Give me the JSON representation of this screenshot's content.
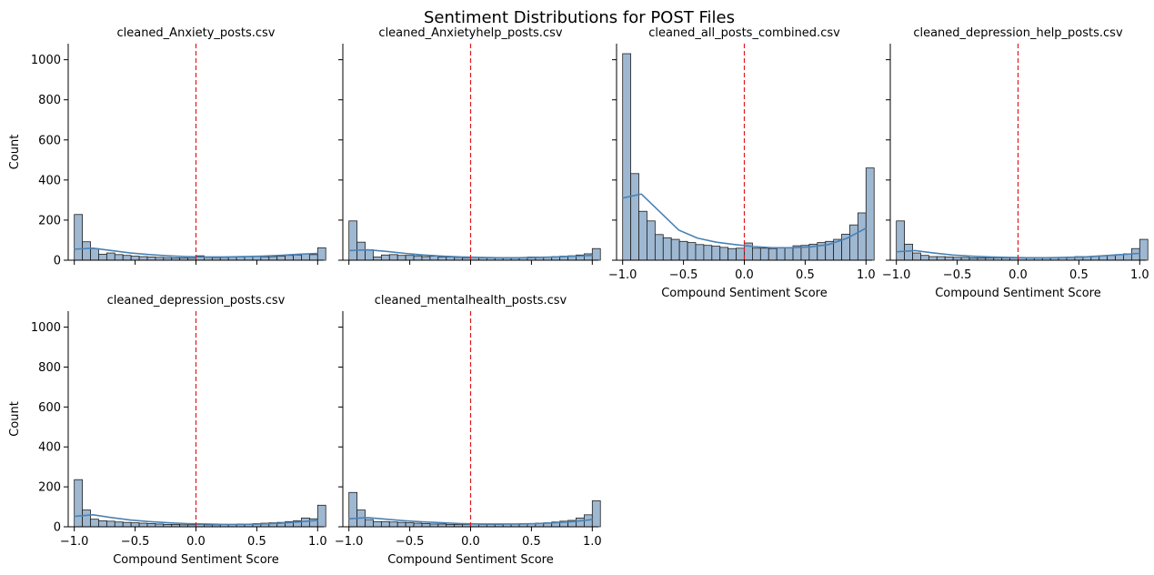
{
  "figure": {
    "title": "Sentiment Distributions for POST Files"
  },
  "colors": {
    "bar_fill": "#9fb8d2",
    "bar_edge": "#1f1f1f",
    "kde_line": "#4a82b4",
    "zero_line": "#e0181c",
    "axis": "#000000"
  },
  "chart_data": [
    {
      "type": "bar",
      "title": "cleaned_Anxiety_posts.csv",
      "xlabel": "",
      "ylabel": "Count",
      "xlim": [
        -1.05,
        1.05
      ],
      "ylim": [
        0,
        1080
      ],
      "bins": [
        -1.0,
        -0.9333,
        -0.8667,
        -0.8,
        -0.7333,
        -0.6667,
        -0.6,
        -0.5333,
        -0.4667,
        -0.4,
        -0.3333,
        -0.2667,
        -0.2,
        -0.1333,
        -0.0667,
        0.0,
        0.0667,
        0.1333,
        0.2,
        0.2667,
        0.3333,
        0.4,
        0.4667,
        0.5333,
        0.6,
        0.6667,
        0.7333,
        0.8,
        0.8667,
        0.9333,
        1.0
      ],
      "counts": [
        228,
        92,
        58,
        30,
        36,
        28,
        24,
        20,
        18,
        16,
        14,
        13,
        12,
        11,
        10,
        22,
        14,
        13,
        14,
        15,
        16,
        18,
        18,
        17,
        18,
        20,
        24,
        26,
        32,
        28,
        62
      ],
      "kde": [
        55,
        60,
        48,
        36,
        28,
        22,
        18,
        16,
        16,
        18,
        20,
        24,
        30,
        34
      ],
      "reference_line_x": 0,
      "x_ticks": [
        -1.0,
        -0.5,
        0.0,
        0.5,
        1.0
      ],
      "x_tick_labels": [
        "",
        "",
        "",
        "",
        ""
      ],
      "y_ticks": [
        0,
        200,
        400,
        600,
        800,
        1000
      ],
      "y_tick_labels": [
        "0",
        "200",
        "400",
        "600",
        "800",
        "1000"
      ]
    },
    {
      "type": "bar",
      "title": "cleaned_Anxietyhelp_posts.csv",
      "xlabel": "",
      "ylabel": "",
      "xlim": [
        -1.05,
        1.05
      ],
      "ylim": [
        0,
        1080
      ],
      "bins": [
        -1.0,
        -0.9333,
        -0.8667,
        -0.8,
        -0.7333,
        -0.6667,
        -0.6,
        -0.5333,
        -0.4667,
        -0.4,
        -0.3333,
        -0.2667,
        -0.2,
        -0.1333,
        -0.0667,
        0.0,
        0.0667,
        0.1333,
        0.2,
        0.2667,
        0.3333,
        0.4,
        0.4667,
        0.5333,
        0.6,
        0.6667,
        0.7333,
        0.8,
        0.8667,
        0.9333,
        1.0
      ],
      "counts": [
        196,
        90,
        52,
        16,
        26,
        28,
        24,
        24,
        22,
        18,
        20,
        16,
        16,
        14,
        12,
        14,
        12,
        12,
        12,
        12,
        14,
        14,
        16,
        16,
        16,
        18,
        20,
        22,
        26,
        32,
        58
      ],
      "kde": [
        48,
        52,
        44,
        34,
        26,
        20,
        16,
        14,
        12,
        12,
        14,
        16,
        20,
        24
      ],
      "reference_line_x": 0,
      "x_ticks": [
        -1.0,
        -0.5,
        0.0,
        0.5,
        1.0
      ],
      "x_tick_labels": [
        "",
        "",
        "",
        "",
        ""
      ],
      "y_ticks": [
        0,
        200,
        400,
        600,
        800,
        1000
      ],
      "y_tick_labels": [
        "",
        "",
        "",
        "",
        "",
        ""
      ]
    },
    {
      "type": "bar",
      "title": "cleaned_all_posts_combined.csv",
      "xlabel": "Compound Sentiment Score",
      "ylabel": "",
      "xlim": [
        -1.05,
        1.05
      ],
      "ylim": [
        0,
        1080
      ],
      "bins": [
        -1.0,
        -0.9333,
        -0.8667,
        -0.8,
        -0.7333,
        -0.6667,
        -0.6,
        -0.5333,
        -0.4667,
        -0.4,
        -0.3333,
        -0.2667,
        -0.2,
        -0.1333,
        -0.0667,
        0.0,
        0.0667,
        0.1333,
        0.2,
        0.2667,
        0.3333,
        0.4,
        0.4667,
        0.5333,
        0.6,
        0.6667,
        0.7333,
        0.8,
        0.8667,
        0.9333,
        1.0
      ],
      "counts": [
        1030,
        432,
        244,
        196,
        128,
        112,
        104,
        94,
        88,
        78,
        74,
        70,
        64,
        58,
        60,
        86,
        60,
        60,
        58,
        62,
        64,
        72,
        74,
        80,
        88,
        94,
        104,
        130,
        176,
        236,
        460
      ],
      "kde": [
        310,
        330,
        240,
        150,
        110,
        90,
        78,
        68,
        62,
        62,
        66,
        78,
        110,
        160
      ],
      "reference_line_x": 0,
      "x_ticks": [
        -1.0,
        -0.5,
        0.0,
        0.5,
        1.0
      ],
      "x_tick_labels": [
        "−1.0",
        "−0.5",
        "0.0",
        "0.5",
        "1.0"
      ],
      "y_ticks": [
        0,
        200,
        400,
        600,
        800,
        1000
      ],
      "y_tick_labels": [
        "",
        "",
        "",
        "",
        "",
        ""
      ]
    },
    {
      "type": "bar",
      "title": "cleaned_depression_help_posts.csv",
      "xlabel": "Compound Sentiment Score",
      "ylabel": "",
      "xlim": [
        -1.05,
        1.05
      ],
      "ylim": [
        0,
        1080
      ],
      "bins": [
        -1.0,
        -0.9333,
        -0.8667,
        -0.8,
        -0.7333,
        -0.6667,
        -0.6,
        -0.5333,
        -0.4667,
        -0.4,
        -0.3333,
        -0.2667,
        -0.2,
        -0.1333,
        -0.0667,
        0.0,
        0.0667,
        0.1333,
        0.2,
        0.2667,
        0.3333,
        0.4,
        0.4667,
        0.5333,
        0.6,
        0.6667,
        0.7333,
        0.8,
        0.8667,
        0.9333,
        1.0
      ],
      "counts": [
        196,
        80,
        36,
        24,
        18,
        18,
        16,
        14,
        14,
        12,
        12,
        12,
        12,
        12,
        12,
        14,
        12,
        12,
        12,
        14,
        14,
        16,
        18,
        18,
        20,
        22,
        24,
        28,
        32,
        58,
        104
      ],
      "kde": [
        42,
        48,
        36,
        26,
        20,
        16,
        14,
        12,
        12,
        14,
        16,
        22,
        28,
        34
      ],
      "reference_line_x": 0,
      "x_ticks": [
        -1.0,
        -0.5,
        0.0,
        0.5,
        1.0
      ],
      "x_tick_labels": [
        "−1.0",
        "−0.5",
        "0.0",
        "0.5",
        "1.0"
      ],
      "y_ticks": [
        0,
        200,
        400,
        600,
        800,
        1000
      ],
      "y_tick_labels": [
        "",
        "",
        "",
        "",
        "",
        ""
      ]
    },
    {
      "type": "bar",
      "title": "cleaned_depression_posts.csv",
      "xlabel": "Compound Sentiment Score",
      "ylabel": "Count",
      "xlim": [
        -1.05,
        1.05
      ],
      "ylim": [
        0,
        1080
      ],
      "bins": [
        -1.0,
        -0.9333,
        -0.8667,
        -0.8,
        -0.7333,
        -0.6667,
        -0.6,
        -0.5333,
        -0.4667,
        -0.4,
        -0.3333,
        -0.2667,
        -0.2,
        -0.1333,
        -0.0667,
        0.0,
        0.0667,
        0.1333,
        0.2,
        0.2667,
        0.3333,
        0.4,
        0.4667,
        0.5333,
        0.6,
        0.6667,
        0.7333,
        0.8,
        0.8667,
        0.9333,
        1.0
      ],
      "counts": [
        236,
        84,
        38,
        30,
        28,
        24,
        22,
        20,
        18,
        16,
        14,
        12,
        12,
        10,
        10,
        12,
        10,
        10,
        12,
        12,
        14,
        14,
        16,
        18,
        20,
        22,
        26,
        30,
        44,
        40,
        108
      ],
      "kde": [
        52,
        60,
        46,
        34,
        26,
        20,
        16,
        14,
        12,
        12,
        14,
        18,
        24,
        32
      ],
      "reference_line_x": 0,
      "x_ticks": [
        -1.0,
        -0.5,
        0.0,
        0.5,
        1.0
      ],
      "x_tick_labels": [
        "−1.0",
        "−0.5",
        "0.0",
        "0.5",
        "1.0"
      ],
      "y_ticks": [
        0,
        200,
        400,
        600,
        800,
        1000
      ],
      "y_tick_labels": [
        "0",
        "200",
        "400",
        "600",
        "800",
        "1000"
      ]
    },
    {
      "type": "bar",
      "title": "cleaned_mentalhealth_posts.csv",
      "xlabel": "Compound Sentiment Score",
      "ylabel": "",
      "xlim": [
        -1.05,
        1.05
      ],
      "ylim": [
        0,
        1080
      ],
      "bins": [
        -1.0,
        -0.9333,
        -0.8667,
        -0.8,
        -0.7333,
        -0.6667,
        -0.6,
        -0.5333,
        -0.4667,
        -0.4,
        -0.3333,
        -0.2667,
        -0.2,
        -0.1333,
        -0.0667,
        0.0,
        0.0667,
        0.1333,
        0.2,
        0.2667,
        0.3333,
        0.4,
        0.4667,
        0.5333,
        0.6,
        0.6667,
        0.7333,
        0.8,
        0.8667,
        0.9333,
        1.0
      ],
      "counts": [
        172,
        84,
        36,
        26,
        26,
        24,
        22,
        20,
        18,
        16,
        14,
        14,
        12,
        12,
        12,
        14,
        12,
        12,
        12,
        14,
        14,
        16,
        16,
        18,
        20,
        24,
        28,
        32,
        44,
        60,
        130
      ],
      "kde": [
        40,
        46,
        38,
        30,
        24,
        20,
        16,
        14,
        14,
        14,
        16,
        20,
        26,
        36
      ],
      "reference_line_x": 0,
      "x_ticks": [
        -1.0,
        -0.5,
        0.0,
        0.5,
        1.0
      ],
      "x_tick_labels": [
        "−1.0",
        "−0.5",
        "0.0",
        "0.5",
        "1.0"
      ],
      "y_ticks": [
        0,
        200,
        400,
        600,
        800,
        1000
      ],
      "y_tick_labels": [
        "",
        "",
        "",
        "",
        "",
        ""
      ]
    }
  ]
}
